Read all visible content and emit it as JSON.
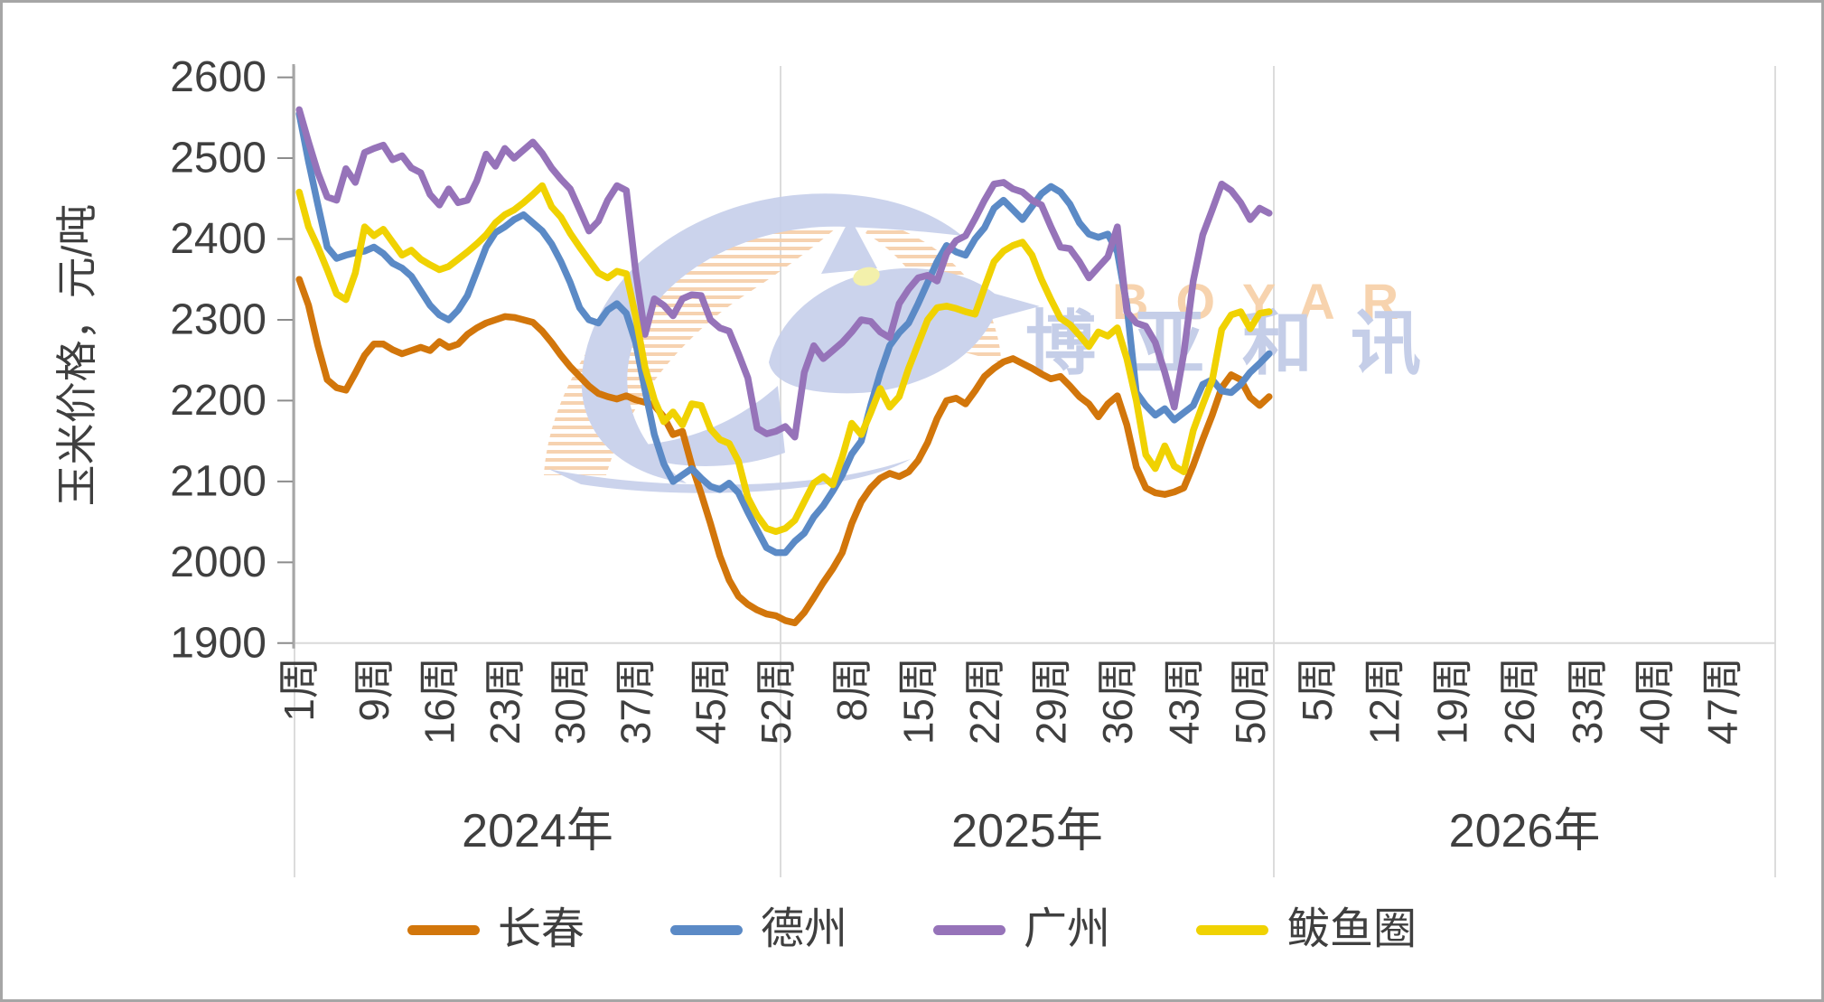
{
  "frame": {
    "border_color": "#a6a6a6",
    "background": "#ffffff"
  },
  "watermark": {
    "text_latin": "BOYAR",
    "text_cjk": "博亚和讯",
    "stripe_color": "#f5cda8",
    "logo_color": "#c6cfea",
    "latin_color": "#f6cfa5",
    "eye_color": "#f2efa2"
  },
  "chart_data": {
    "type": "line",
    "title": "",
    "ylabel": "玉米价格，元/吨",
    "grid": "baseline-only",
    "legend": {
      "position": "bottom",
      "items": [
        "长春",
        "德州",
        "广州",
        "鲅鱼圈"
      ]
    },
    "y_axis": {
      "min": 1900,
      "max": 2600,
      "step": 100,
      "tick_labels": [
        "1900",
        "2000",
        "2100",
        "2200",
        "2300",
        "2400",
        "2500",
        "2600"
      ]
    },
    "x_axis": {
      "weeks_per_year": 52,
      "years": [
        {
          "year": "2024",
          "label": "2024年",
          "week_tick_labels": [
            "1周",
            "9周",
            "16周",
            "23周",
            "30周",
            "37周",
            "45周",
            "52周"
          ],
          "week_tick_numbers": [
            1,
            9,
            16,
            23,
            30,
            37,
            45,
            52
          ]
        },
        {
          "year": "2025",
          "label": "2025年",
          "week_tick_labels": [
            "8周",
            "15周",
            "22周",
            "29周",
            "36周",
            "43周",
            "50周"
          ],
          "week_tick_numbers": [
            8,
            15,
            22,
            29,
            36,
            43,
            50
          ]
        },
        {
          "year": "2026",
          "label": "2026年",
          "week_tick_labels": [
            "5周",
            "12周",
            "19周",
            "26周",
            "33周",
            "40周",
            "47周"
          ],
          "week_tick_numbers": [
            5,
            12,
            19,
            26,
            33,
            40,
            47
          ]
        }
      ]
    },
    "series": [
      {
        "name": "长春",
        "color": "#d2760b",
        "weekly_values": {
          "2024": [
            2350,
            2318,
            2268,
            2226,
            2216,
            2213,
            2234,
            2256,
            2270,
            2270,
            2263,
            2258,
            2262,
            2266,
            2262,
            2273,
            2266,
            2270,
            2282,
            2290,
            2296,
            2300,
            2304,
            2303,
            2300,
            2297,
            2286,
            2272,
            2256,
            2242,
            2230,
            2218,
            2209,
            2205,
            2202,
            2206,
            2201,
            2198,
            2194,
            2180,
            2158,
            2162,
            2120,
            2085,
            2048,
            2008,
            1978,
            1958,
            1948,
            1941,
            1936,
            1934
          ],
          "2025": [
            1928,
            1925,
            1938,
            1956,
            1975,
            1992,
            2012,
            2048,
            2075,
            2092,
            2104,
            2110,
            2106,
            2112,
            2126,
            2148,
            2178,
            2200,
            2203,
            2196,
            2212,
            2230,
            2240,
            2248,
            2252,
            2246,
            2240,
            2233,
            2227,
            2230,
            2218,
            2205,
            2196,
            2180,
            2196,
            2206,
            2170,
            2118,
            2092,
            2086,
            2084,
            2087,
            2092,
            2120,
            2152,
            2182,
            2216,
            2232,
            2226,
            2204,
            2194,
            2205
          ],
          "2026": []
        }
      },
      {
        "name": "德州",
        "color": "#5b8ac6",
        "weekly_values": {
          "2024": [
            2555,
            2496,
            2442,
            2390,
            2376,
            2380,
            2383,
            2385,
            2390,
            2382,
            2370,
            2364,
            2354,
            2336,
            2318,
            2306,
            2300,
            2312,
            2330,
            2360,
            2390,
            2408,
            2415,
            2424,
            2430,
            2420,
            2410,
            2394,
            2372,
            2346,
            2315,
            2300,
            2296,
            2312,
            2320,
            2308,
            2272,
            2213,
            2158,
            2122,
            2100,
            2108,
            2116,
            2104,
            2094,
            2090,
            2098,
            2086,
            2062,
            2040,
            2018,
            2012
          ],
          "2025": [
            2012,
            2026,
            2036,
            2056,
            2070,
            2088,
            2108,
            2134,
            2150,
            2194,
            2234,
            2268,
            2284,
            2296,
            2320,
            2346,
            2372,
            2392,
            2384,
            2380,
            2400,
            2414,
            2438,
            2448,
            2436,
            2424,
            2440,
            2456,
            2465,
            2458,
            2443,
            2420,
            2406,
            2402,
            2406,
            2384,
            2318,
            2210,
            2194,
            2182,
            2190,
            2176,
            2185,
            2194,
            2220,
            2226,
            2212,
            2210,
            2220,
            2235,
            2246,
            2258
          ],
          "2026": []
        }
      },
      {
        "name": "广州",
        "color": "#9673b9",
        "weekly_values": {
          "2024": [
            2560,
            2520,
            2482,
            2452,
            2448,
            2487,
            2470,
            2507,
            2512,
            2516,
            2498,
            2503,
            2488,
            2482,
            2455,
            2442,
            2462,
            2445,
            2448,
            2472,
            2505,
            2490,
            2512,
            2500,
            2510,
            2520,
            2506,
            2488,
            2474,
            2462,
            2436,
            2410,
            2422,
            2448,
            2466,
            2460,
            2360,
            2282,
            2326,
            2318,
            2305,
            2326,
            2331,
            2330,
            2300,
            2290,
            2286,
            2258,
            2228,
            2166,
            2159,
            2162
          ],
          "2025": [
            2168,
            2155,
            2235,
            2268,
            2252,
            2262,
            2272,
            2285,
            2300,
            2298,
            2285,
            2278,
            2320,
            2338,
            2352,
            2355,
            2348,
            2382,
            2398,
            2404,
            2425,
            2448,
            2468,
            2470,
            2462,
            2458,
            2448,
            2442,
            2415,
            2390,
            2388,
            2372,
            2352,
            2365,
            2378,
            2415,
            2310,
            2296,
            2292,
            2272,
            2235,
            2192,
            2258,
            2348,
            2405,
            2436,
            2468,
            2460,
            2445,
            2424,
            2438,
            2432
          ],
          "2026": []
        }
      },
      {
        "name": "鲅鱼圈",
        "color": "#f0d202",
        "weekly_values": {
          "2024": [
            2458,
            2415,
            2390,
            2362,
            2332,
            2325,
            2358,
            2415,
            2404,
            2412,
            2396,
            2380,
            2386,
            2375,
            2368,
            2362,
            2366,
            2375,
            2384,
            2394,
            2405,
            2420,
            2430,
            2436,
            2445,
            2455,
            2466,
            2440,
            2427,
            2407,
            2390,
            2374,
            2358,
            2352,
            2360,
            2357,
            2304,
            2241,
            2201,
            2174,
            2186,
            2170,
            2196,
            2194,
            2165,
            2152,
            2147,
            2125,
            2080,
            2058,
            2042,
            2038
          ],
          "2025": [
            2042,
            2052,
            2075,
            2098,
            2106,
            2096,
            2130,
            2172,
            2158,
            2185,
            2215,
            2192,
            2205,
            2240,
            2270,
            2300,
            2315,
            2317,
            2314,
            2310,
            2307,
            2340,
            2372,
            2385,
            2392,
            2396,
            2380,
            2350,
            2325,
            2302,
            2294,
            2281,
            2267,
            2285,
            2280,
            2290,
            2252,
            2200,
            2133,
            2116,
            2144,
            2119,
            2112,
            2163,
            2195,
            2225,
            2288,
            2306,
            2310,
            2289,
            2308,
            2310
          ],
          "2026": []
        }
      }
    ]
  }
}
